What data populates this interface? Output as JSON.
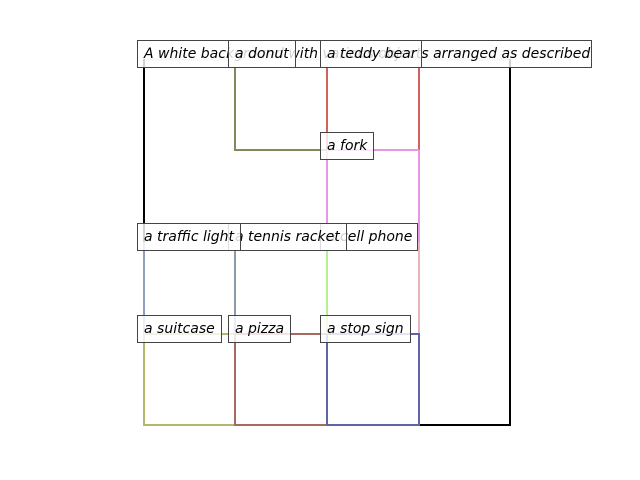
{
  "caption": "A white background with various objects arranged as described",
  "colors": {
    "background": "#ffffff",
    "outer_frame": "#000000",
    "label_border": "#444444"
  },
  "boxes": [
    {
      "name": "donut",
      "label": "a donut",
      "color": "#7f8a5f"
    },
    {
      "name": "teddy-bear",
      "label": "a teddy bear",
      "color": "#d2625e"
    },
    {
      "name": "fork",
      "label": "a fork",
      "color": "#e696e6"
    },
    {
      "name": "traffic-light",
      "label": "a traffic light",
      "color": "#8e9fbf"
    },
    {
      "name": "tennis-racket",
      "label": "a tennis racket",
      "color": "#8a9aa8"
    },
    {
      "name": "cell-phone",
      "label": "a cell phone",
      "color": "#b8f08a"
    },
    {
      "name": "cell-phone-right-edge",
      "label": "",
      "color": "#e8b4bc"
    },
    {
      "name": "suitcase",
      "label": "a suitcase",
      "color": "#b4b86a"
    },
    {
      "name": "pizza",
      "label": "a pizza",
      "color": "#a66a60"
    },
    {
      "name": "stop-sign",
      "label": "a stop sign",
      "color": "#5f64a8"
    }
  ]
}
